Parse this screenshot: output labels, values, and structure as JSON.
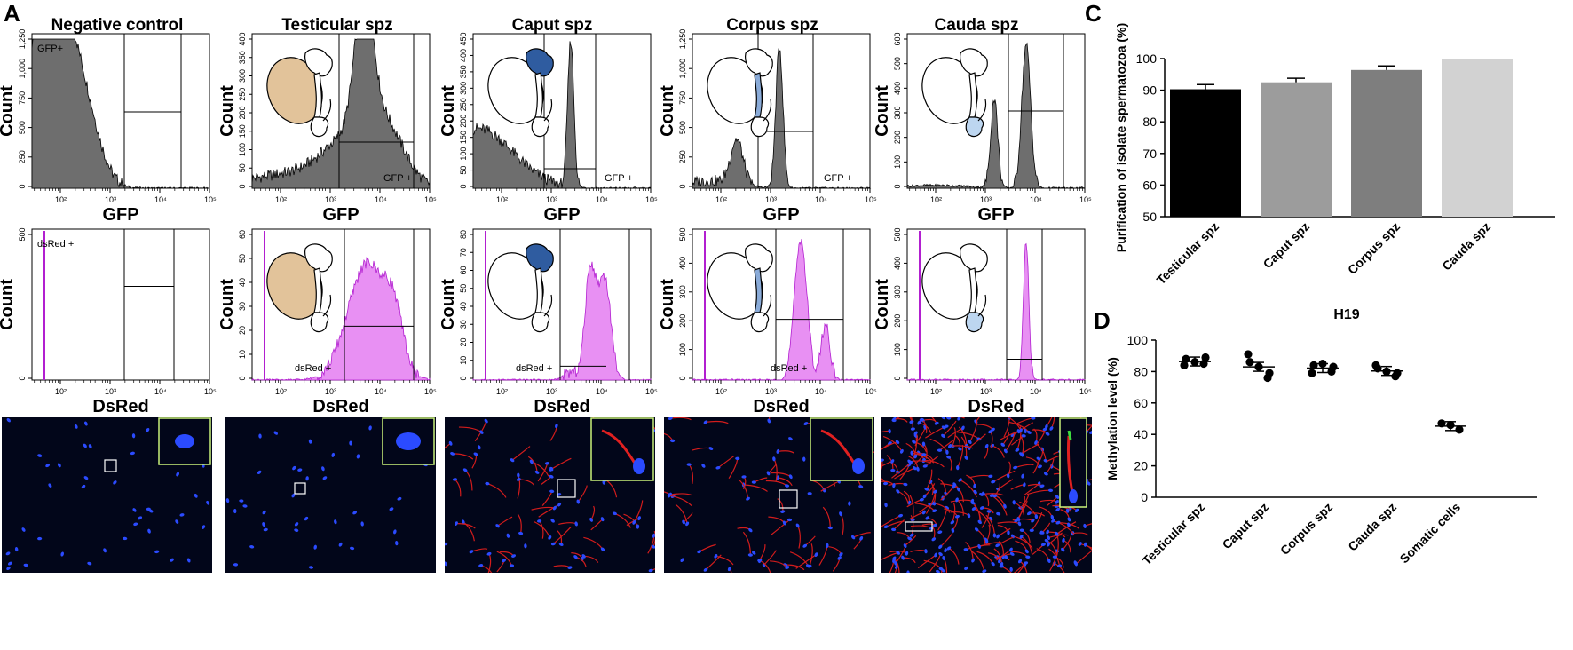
{
  "panels": {
    "a": "A",
    "c": "C",
    "d": "D"
  },
  "columns": [
    {
      "title": "Negative control",
      "gfp_gate": "GFP+",
      "dsred_gate": "dsRed +",
      "tissue": "none"
    },
    {
      "title": "Testicular spz",
      "gfp_gate": "GFP +",
      "dsred_gate": "dsRed +",
      "tissue": "testis"
    },
    {
      "title": "Caput spz",
      "gfp_gate": "GFP +",
      "dsred_gate": "dsRed +",
      "tissue": "caput"
    },
    {
      "title": "Corpus spz",
      "gfp_gate": "GFP +",
      "dsred_gate": "dsRed +",
      "tissue": "corpus"
    },
    {
      "title": "Cauda spz",
      "gfp_gate": "",
      "dsred_gate": "",
      "tissue": "cauda"
    }
  ],
  "histogram_axes": {
    "ylabel": "Count",
    "gfp_xlabel": "GFP",
    "dsred_xlabel": "DsRed",
    "x_ticks": [
      "10²",
      "10³",
      "10⁴",
      "10⁵"
    ],
    "gfp_yticks": [
      [
        "0",
        "250",
        "500",
        "750",
        "1,000",
        "1,250"
      ],
      [
        "0",
        "50",
        "100",
        "150",
        "200",
        "250",
        "300",
        "350",
        "400"
      ],
      [
        "0",
        "50",
        "100",
        "150",
        "200",
        "250",
        "300",
        "350",
        "400",
        "450"
      ],
      [
        "0",
        "250",
        "500",
        "750",
        "1,000",
        "1,250"
      ],
      [
        "0",
        "100",
        "200",
        "300",
        "400",
        "500",
        "600"
      ]
    ],
    "dsred_yticks": [
      [
        "0",
        "500"
      ],
      [
        "0",
        "10",
        "20",
        "30",
        "40",
        "50",
        "60"
      ],
      [
        "0",
        "10",
        "20",
        "30",
        "40",
        "50",
        "60",
        "70",
        "80"
      ],
      [
        "0",
        "100",
        "200",
        "300",
        "400",
        "500"
      ],
      [
        "0",
        "100",
        "200",
        "300",
        "400",
        "500"
      ]
    ]
  },
  "colors": {
    "gfp_fill": "#6e6e6e",
    "dsred_fill": "#e890f3",
    "dsred_line": "#b21fd0",
    "testis": "#e2c39a",
    "caput": "#2f5ca0",
    "corpus": "#8aabd8",
    "cauda": "#bdd6f0"
  },
  "chart_data": [
    {
      "type": "bar",
      "title": "",
      "ylabel": "Purification of isolate spermatozoa (%)",
      "categories": [
        "Testicular spz",
        "Caput spz",
        "Corpus spz",
        "Cauda spz"
      ],
      "values": [
        90.3,
        92.5,
        96.4,
        100
      ],
      "errors": [
        1.5,
        1.3,
        1.3,
        0
      ],
      "colors": [
        "#000000",
        "#9c9c9c",
        "#7e7e7e",
        "#d2d2d2"
      ],
      "ylim": [
        50,
        100
      ],
      "yticks": [
        "50",
        "60",
        "70",
        "80",
        "90",
        "100"
      ]
    },
    {
      "type": "scatter",
      "title": "H19",
      "ylabel": "Methylation level (%)",
      "categories": [
        "Testicular spz",
        "Caput spz",
        "Corpus spz",
        "Cauda spz",
        "Somatic cells"
      ],
      "points": [
        [
          88,
          85,
          86,
          84,
          89
        ],
        [
          86,
          76,
          83,
          91,
          79
        ],
        [
          84,
          80,
          85,
          79,
          83
        ],
        [
          82,
          77,
          80,
          84,
          79
        ],
        [
          47,
          43,
          46
        ]
      ],
      "means": [
        86.4,
        83,
        82.2,
        80.4,
        45.3
      ],
      "ylim": [
        0,
        100
      ],
      "yticks": [
        "0",
        "20",
        "40",
        "60",
        "80",
        "100"
      ]
    }
  ]
}
